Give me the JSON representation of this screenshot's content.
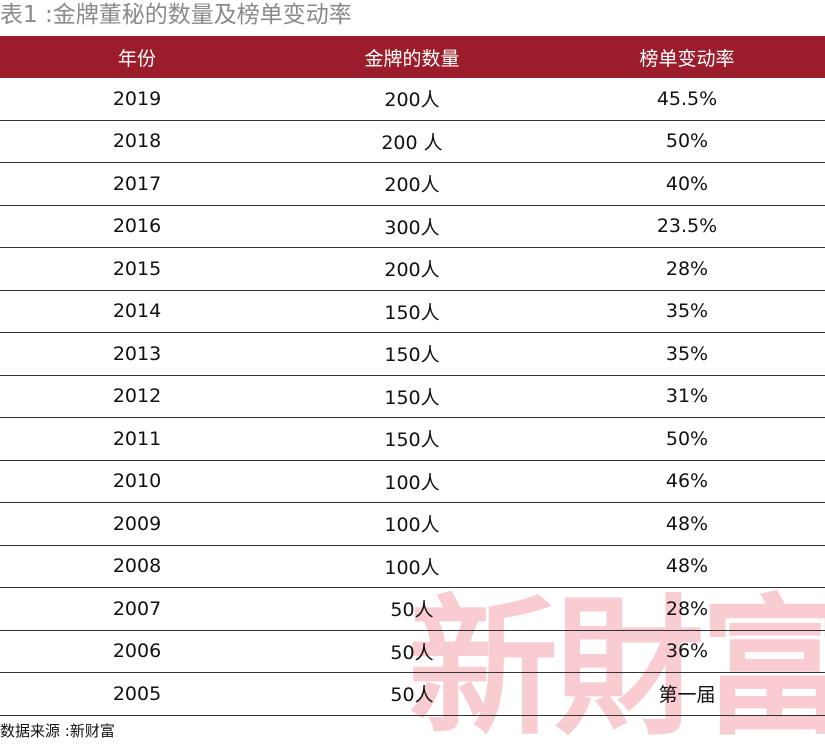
{
  "header": {
    "title": "表1 :金牌董秘的数量及榜单变动率"
  },
  "table": {
    "columns": [
      "年份",
      "金牌的数量",
      "榜单变动率"
    ],
    "rows": [
      [
        "2019",
        "200人",
        "45.5%"
      ],
      [
        "2018",
        "200 人",
        "50%"
      ],
      [
        "2017",
        "200人",
        "40%"
      ],
      [
        "2016",
        "300人",
        "23.5%"
      ],
      [
        "2015",
        "200人",
        "28%"
      ],
      [
        "2014",
        "150人",
        "35%"
      ],
      [
        "2013",
        "150人",
        "35%"
      ],
      [
        "2012",
        "150人",
        "31%"
      ],
      [
        "2011",
        "150人",
        "50%"
      ],
      [
        "2010",
        "100人",
        "46%"
      ],
      [
        "2009",
        "100人",
        "48%"
      ],
      [
        "2008",
        "100人",
        "48%"
      ],
      [
        "2007",
        "50人",
        "28%"
      ],
      [
        "2006",
        "50人",
        "36%"
      ],
      [
        "2005",
        "50人",
        "第一届"
      ]
    ]
  },
  "watermark": "新財富",
  "footer": {
    "source": "数据来源 :新财富"
  }
}
